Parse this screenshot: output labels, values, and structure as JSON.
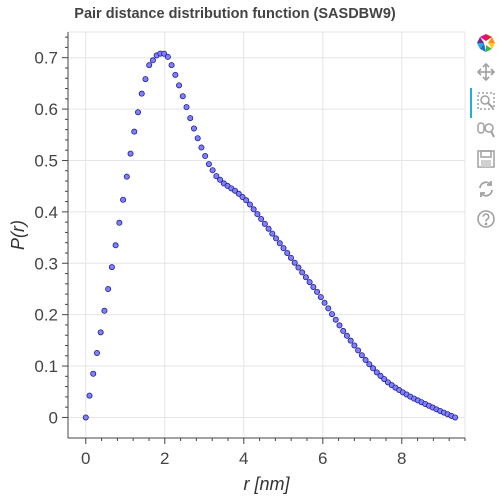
{
  "chart_data": {
    "type": "scatter",
    "title": "Pair distance distribution function (SASDBW9)",
    "xlabel": "r [nm]",
    "ylabel": "P(r)",
    "xlim": [
      -0.45,
      9.6
    ],
    "ylim": [
      -0.04,
      0.75
    ],
    "xticks": [
      0,
      2,
      4,
      6,
      8
    ],
    "yticks": [
      0,
      0.1,
      0.2,
      0.3,
      0.4,
      0.5,
      0.6,
      0.7
    ],
    "x_tick_labels": [
      "0",
      "2",
      "4",
      "6",
      "8"
    ],
    "y_tick_labels": [
      "0",
      "0.1",
      "0.2",
      "0.3",
      "0.4",
      "0.5",
      "0.6",
      "0.7"
    ],
    "grid": true,
    "marker": {
      "fill": "#8080ff",
      "stroke": "#1f1f8f"
    },
    "anchors": {
      "x": [
        0,
        0.1,
        0.2,
        0.4,
        0.6,
        0.8,
        1.0,
        1.2,
        1.4,
        1.6,
        1.8,
        1.95,
        2.1,
        2.3,
        2.5,
        2.7,
        2.9,
        3.1,
        3.3,
        3.5,
        3.8,
        4.1,
        4.4,
        4.7,
        5.0,
        5.3,
        5.6,
        5.9,
        6.2,
        6.5,
        6.8,
        7.1,
        7.4,
        7.7,
        8.0,
        8.3,
        8.6,
        8.9,
        9.2,
        9.35
      ],
      "y": [
        0.0,
        0.045,
        0.09,
        0.175,
        0.265,
        0.355,
        0.45,
        0.545,
        0.625,
        0.685,
        0.705,
        0.71,
        0.7,
        0.66,
        0.615,
        0.57,
        0.53,
        0.495,
        0.47,
        0.455,
        0.44,
        0.42,
        0.39,
        0.36,
        0.33,
        0.3,
        0.27,
        0.24,
        0.205,
        0.17,
        0.14,
        0.11,
        0.085,
        0.065,
        0.05,
        0.037,
        0.026,
        0.015,
        0.005,
        0.0
      ]
    },
    "n_points": 100
  },
  "toolbar": {
    "logo": "bokeh-logo-icon",
    "tools": [
      "pan-icon",
      "box-zoom-icon",
      "wheel-zoom-icon",
      "save-icon",
      "reset-icon",
      "help-icon"
    ]
  }
}
